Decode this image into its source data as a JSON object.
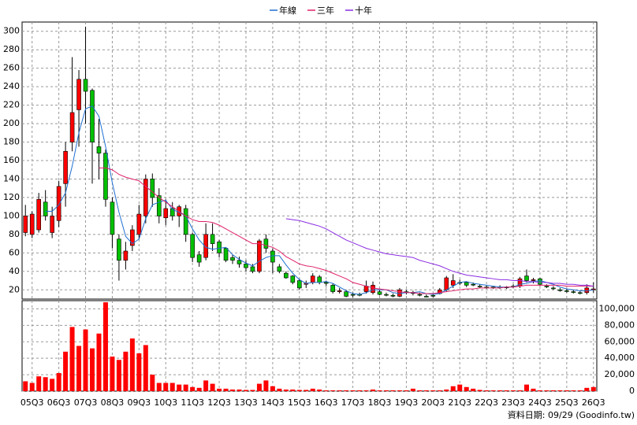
{
  "chart_data": [
    {
      "type": "candlestick",
      "open": [
        82,
        80,
        85,
        115,
        82,
        95,
        135,
        180,
        215,
        248,
        236,
        175,
        168,
        115,
        75,
        52,
        68,
        80,
        100,
        140,
        122,
        98,
        108,
        100,
        108,
        80,
        58,
        55,
        80,
        72,
        65,
        55,
        52,
        48,
        45,
        40,
        75,
        62,
        45,
        38,
        35,
        30,
        26,
        28,
        34,
        28,
        25,
        18,
        18,
        15,
        15,
        18,
        17,
        18,
        15,
        14,
        13,
        18,
        17,
        15,
        13,
        14,
        16,
        20,
        25,
        28,
        28,
        26,
        24,
        23,
        23,
        23,
        23,
        24,
        24,
        35,
        30,
        32,
        24,
        22,
        20,
        19,
        18,
        17,
        17,
        20
      ],
      "high": [
        112,
        105,
        125,
        128,
        110,
        138,
        180,
        272,
        258,
        305,
        238,
        205,
        172,
        120,
        80,
        72,
        90,
        112,
        145,
        146,
        130,
        118,
        115,
        112,
        112,
        82,
        62,
        92,
        92,
        74,
        66,
        58,
        56,
        52,
        48,
        75,
        80,
        65,
        48,
        40,
        36,
        32,
        30,
        38,
        36,
        30,
        27,
        22,
        20,
        17,
        17,
        30,
        29,
        20,
        17,
        16,
        22,
        20,
        19,
        17,
        15,
        16,
        22,
        35,
        37,
        31,
        29,
        28,
        26,
        25,
        24,
        25,
        24,
        26,
        34,
        42,
        33,
        33,
        26,
        24,
        22,
        21,
        20,
        19,
        26,
        28
      ],
      "low": [
        78,
        76,
        82,
        95,
        76,
        88,
        110,
        170,
        175,
        200,
        135,
        140,
        110,
        65,
        30,
        42,
        62,
        75,
        92,
        110,
        92,
        90,
        95,
        88,
        72,
        50,
        45,
        52,
        62,
        55,
        50,
        48,
        44,
        40,
        38,
        38,
        60,
        38,
        38,
        32,
        26,
        20,
        22,
        26,
        26,
        24,
        16,
        16,
        12,
        12,
        13,
        16,
        15,
        14,
        13,
        12,
        12,
        15,
        14,
        13,
        12,
        12,
        15,
        18,
        22,
        25,
        23,
        24,
        22,
        21,
        21,
        21,
        21,
        22,
        22,
        28,
        27,
        24,
        22,
        20,
        18,
        17,
        16,
        15,
        15,
        17
      ],
      "close": [
        100,
        102,
        118,
        100,
        100,
        132,
        170,
        212,
        248,
        235,
        180,
        168,
        118,
        80,
        52,
        62,
        85,
        102,
        140,
        120,
        100,
        108,
        100,
        110,
        80,
        55,
        50,
        80,
        70,
        60,
        52,
        52,
        48,
        44,
        40,
        73,
        65,
        50,
        40,
        33,
        28,
        22,
        27,
        35,
        28,
        27,
        18,
        19,
        13,
        15,
        15,
        24,
        25,
        15,
        15,
        14,
        20,
        18,
        17,
        15,
        13,
        14,
        20,
        33,
        30,
        28,
        25,
        26,
        24,
        23,
        23,
        23,
        23,
        24,
        32,
        30,
        31,
        26,
        24,
        22,
        20,
        19,
        18,
        17,
        22,
        21
      ],
      "up_color": "#ff0000",
      "down_color": "#00c000",
      "series": [
        {
          "name": "年線",
          "color": "#1f6fd0",
          "values": [
            null,
            null,
            null,
            105,
            105,
            112,
            125,
            154,
            190,
            216,
            219,
            208,
            175,
            136,
            104,
            78,
            70,
            75,
            97,
            112,
            115,
            117,
            107,
            104,
            100,
            86,
            74,
            66,
            64,
            65,
            66,
            58,
            53,
            49,
            46,
            51,
            55,
            57,
            57,
            47,
            38,
            31,
            27,
            28,
            28,
            29,
            27,
            23,
            19,
            16,
            15,
            17,
            20,
            20,
            20,
            17,
            16,
            17,
            17,
            18,
            16,
            15,
            16,
            20,
            24,
            28,
            29,
            27,
            26,
            25,
            24,
            23,
            23,
            23,
            26,
            27,
            29,
            30,
            28,
            26,
            23,
            21,
            20,
            19,
            19,
            20
          ]
        },
        {
          "name": "三年",
          "color": "#e0206a",
          "values": [
            null,
            null,
            null,
            null,
            null,
            null,
            null,
            null,
            null,
            null,
            null,
            152,
            152,
            150,
            145,
            142,
            140,
            138,
            132,
            126,
            120,
            115,
            110,
            105,
            100,
            96,
            94,
            94,
            93,
            90,
            86,
            82,
            78,
            74,
            70,
            70,
            68,
            66,
            62,
            56,
            52,
            48,
            46,
            45,
            43,
            41,
            38,
            35,
            32,
            28,
            26,
            24,
            22,
            21,
            20,
            19,
            18,
            17,
            17,
            16,
            16,
            16,
            17,
            18,
            19,
            20,
            21,
            21,
            22,
            22,
            22,
            22,
            23,
            23,
            24,
            25,
            25,
            25,
            25,
            25,
            25,
            24,
            24,
            24,
            24,
            24
          ]
        },
        {
          "name": "十年",
          "color": "#8a2be2",
          "values": [
            null,
            null,
            null,
            null,
            null,
            null,
            null,
            null,
            null,
            null,
            null,
            null,
            null,
            null,
            null,
            null,
            null,
            null,
            null,
            null,
            null,
            null,
            null,
            null,
            null,
            null,
            null,
            null,
            null,
            null,
            null,
            null,
            null,
            null,
            null,
            null,
            null,
            null,
            null,
            97,
            96,
            95,
            93,
            91,
            89,
            86,
            82,
            78,
            74,
            71,
            68,
            65,
            63,
            61,
            59,
            58,
            57,
            56,
            55,
            52,
            50,
            48,
            46,
            43,
            40,
            38,
            36,
            35,
            34,
            33,
            32,
            31,
            31,
            30,
            30,
            29,
            29,
            28,
            28,
            27,
            27,
            26,
            26,
            25,
            25,
            24
          ]
        }
      ],
      "ylim": [
        10,
        310
      ],
      "yticks": [
        20,
        40,
        60,
        80,
        100,
        120,
        140,
        160,
        180,
        200,
        220,
        240,
        260,
        280,
        300
      ],
      "grid": true
    },
    {
      "type": "bar",
      "categories": [
        null,
        "05Q3",
        null,
        null,
        null,
        "06Q3",
        null,
        null,
        null,
        "07Q3",
        null,
        null,
        null,
        "08Q3",
        null,
        null,
        null,
        "09Q3",
        null,
        null,
        null,
        "10Q3",
        null,
        null,
        null,
        "11Q3",
        null,
        null,
        null,
        "12Q3",
        null,
        null,
        null,
        "13Q3",
        null,
        null,
        null,
        "14Q3",
        null,
        null,
        null,
        "15Q3",
        null,
        null,
        null,
        "16Q3",
        null,
        null,
        null,
        "17Q3",
        null,
        null,
        null,
        "18Q3",
        null,
        null,
        null,
        "19Q3",
        null,
        null,
        null,
        "20Q3",
        null,
        null,
        null,
        "21Q3",
        null,
        null,
        null,
        "22Q3",
        null,
        null,
        null,
        "23Q3",
        null,
        null,
        null,
        "24Q3",
        null,
        null,
        null,
        "25Q3",
        null,
        null,
        null,
        "26Q3"
      ],
      "values": [
        12000,
        10000,
        18000,
        17000,
        15000,
        22000,
        48000,
        78000,
        55000,
        75000,
        52000,
        70000,
        108000,
        42000,
        38000,
        48000,
        64000,
        46000,
        56000,
        20000,
        10000,
        10000,
        10000,
        8000,
        8000,
        5000,
        4000,
        13000,
        9000,
        3000,
        3000,
        2000,
        2000,
        1500,
        1500,
        9000,
        13000,
        6000,
        3000,
        2000,
        2000,
        1500,
        1500,
        3000,
        2000,
        1000,
        1000,
        1000,
        1000,
        1000,
        1000,
        1000,
        2000,
        1000,
        1000,
        1000,
        1000,
        1000,
        3000,
        1000,
        1000,
        1000,
        1000,
        2000,
        6000,
        8000,
        5000,
        3000,
        1500,
        1000,
        1000,
        1000,
        1000,
        1000,
        1000,
        8000,
        3000,
        1000,
        1000,
        1000,
        1000,
        1000,
        1000,
        1000,
        4000,
        5000
      ],
      "color": "#ff0000",
      "ylim": [
        0,
        110000
      ],
      "yticks": [
        0,
        {
          "value": 20000,
          "label": "20,000"
        },
        {
          "value": 40000,
          "label": "40,000"
        },
        {
          "value": 60000,
          "label": "60,000"
        },
        {
          "value": 80000,
          "label": "80,000"
        },
        {
          "value": 100000,
          "label": "100,000"
        }
      ],
      "grid": true,
      "note": "資料日期: 09/29 (Goodinfo.tw)"
    }
  ]
}
